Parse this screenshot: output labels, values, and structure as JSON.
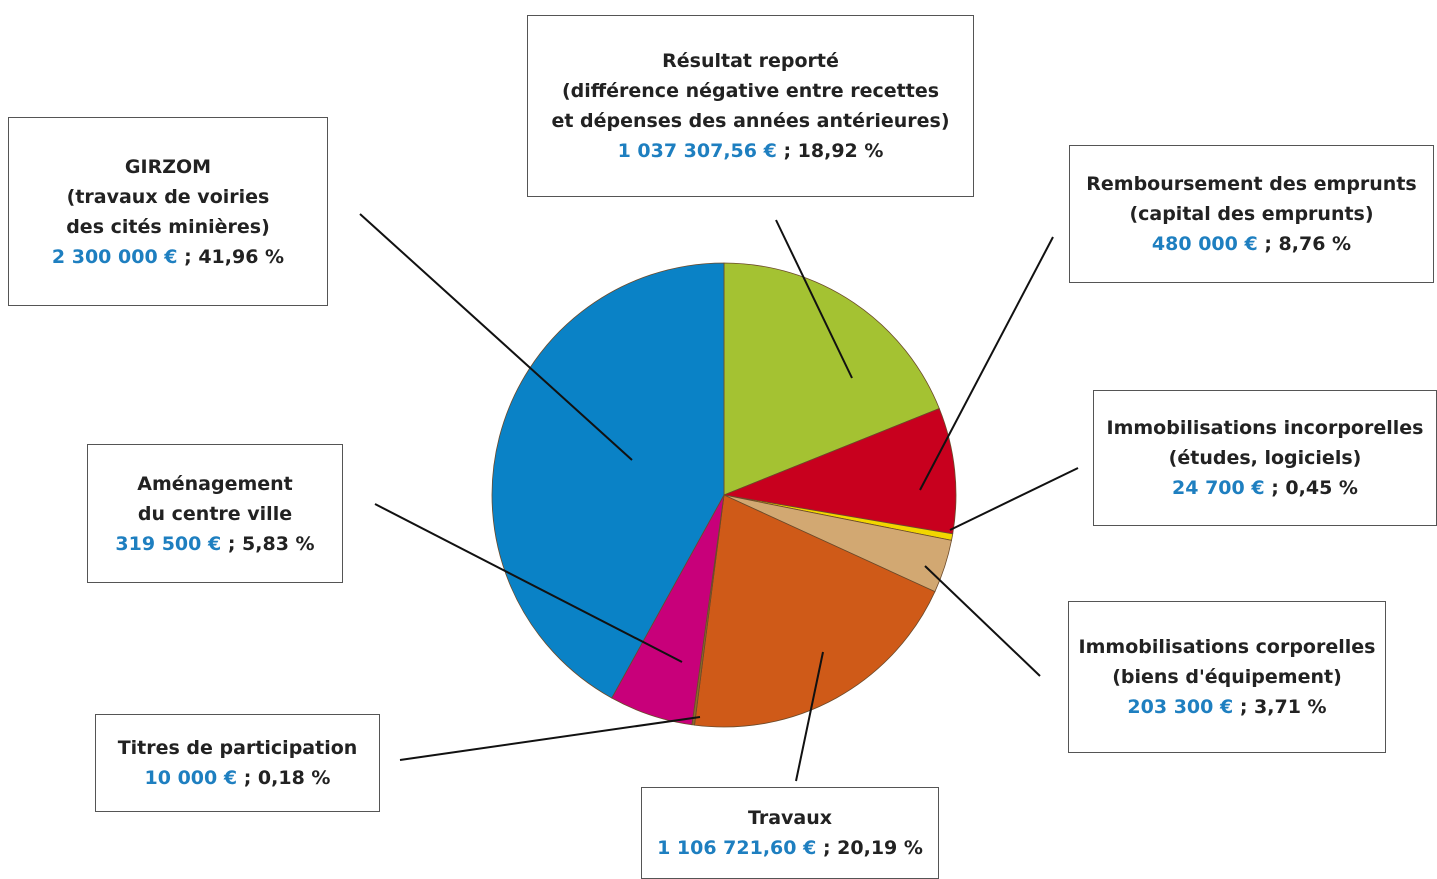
{
  "chart_data": {
    "type": "pie",
    "slices": [
      {
        "id": "resultat",
        "value": 18.92,
        "color": "#a4c232",
        "lines": [
          "Résultat reporté",
          "(différence négative entre recettes",
          "et dépenses des années antérieures)"
        ],
        "amount": "1 037 307,56 €",
        "pct": "; 18,92 %"
      },
      {
        "id": "remboursement",
        "value": 8.76,
        "color": "#c8001e",
        "lines": [
          "Remboursement des emprunts",
          "(capital des emprunts)"
        ],
        "amount": "480 000 €",
        "pct": "; 8,76 %"
      },
      {
        "id": "incorporelles",
        "value": 0.45,
        "color": "#f2d600",
        "lines": [
          "Immobilisations incorporelles",
          "(études, logiciels)"
        ],
        "amount": "24 700 €",
        "pct": "; 0,45 %"
      },
      {
        "id": "corporelles",
        "value": 3.71,
        "color": "#d2a872",
        "lines": [
          "Immobilisations corporelles",
          "(biens d'équipement)"
        ],
        "amount": "203 300 €",
        "pct": "; 3,71 %"
      },
      {
        "id": "travaux",
        "value": 20.19,
        "color": "#cf5a18",
        "lines": [
          "Travaux"
        ],
        "amount": "1 106 721,60 €",
        "pct": "; 20,19 %"
      },
      {
        "id": "titres",
        "value": 0.18,
        "color": "#8a6a2a",
        "lines": [
          "Titres de participation"
        ],
        "amount": "10 000 €",
        "pct": "; 0,18 %"
      },
      {
        "id": "amenagement",
        "value": 5.83,
        "color": "#c8007a",
        "lines": [
          "Aménagement",
          "du centre ville"
        ],
        "amount": "319 500 €",
        "pct": "; 5,83 %"
      },
      {
        "id": "girzom",
        "value": 41.96,
        "color": "#0a82c6",
        "lines": [
          "GIRZOM",
          "(travaux de voiries",
          "des cités minières)"
        ],
        "amount": "2 300 000 €",
        "pct": "; 41,96 %"
      }
    ]
  }
}
